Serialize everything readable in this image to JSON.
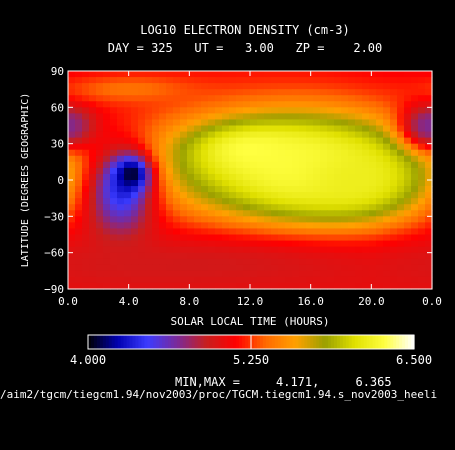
{
  "chart_data": {
    "type": "heatmap",
    "title": "LOG10 ELECTRON DENSITY (cm-3)",
    "subtitle": "DAY = 325   UT =   3.00   ZP =    2.00",
    "xlabel": "SOLAR LOCAL TIME (HOURS)",
    "ylabel": "LATITUDE (DEGREES GEOGRAPHIC)",
    "x_ticks": [
      "0.0",
      "4.0",
      "8.0",
      "12.0",
      "16.0",
      "20.0",
      "0.0"
    ],
    "y_ticks": [
      "90",
      "60",
      "30",
      "0",
      "−30",
      "−60",
      "−90"
    ],
    "y_range": [
      -90,
      90
    ],
    "x_range_hours": [
      0,
      24
    ],
    "colorbar": {
      "ticks": [
        "4.000",
        "5.250",
        "6.500"
      ],
      "min": 4.0,
      "max": 6.5
    },
    "minmax_label": "MIN,MAX =",
    "minmax_values": "4.171,     6.365",
    "blobs": [
      {
        "x": 12.0,
        "y": 50,
        "sx": 9.0,
        "sy": 38,
        "v": 5.2
      },
      {
        "x": 14.5,
        "y": 10,
        "sx": 7.5,
        "sy": 30,
        "v": 5.55
      },
      {
        "x": 13.5,
        "y": 10,
        "sx": 5.2,
        "sy": 26,
        "v": 5.95
      },
      {
        "x": 12.0,
        "y": 25,
        "sx": 2.6,
        "sy": 14,
        "v": 6.25
      },
      {
        "x": 16.0,
        "y": 10,
        "sx": 4.2,
        "sy": 28,
        "v": 6.3
      },
      {
        "x": 19.0,
        "y": 0,
        "sx": 3.0,
        "sy": 22,
        "v": 6.15
      },
      {
        "x": 3.5,
        "y": -10,
        "sx": 1.5,
        "sy": 26,
        "v": 4.4
      },
      {
        "x": 4.2,
        "y": 5,
        "sx": 0.8,
        "sy": 10,
        "v": 4.05
      },
      {
        "x": 8.0,
        "y": -70,
        "sx": 10.0,
        "sy": 15,
        "v": 4.95
      },
      {
        "x": 0.2,
        "y": 45,
        "sx": 1.2,
        "sy": 12,
        "v": 4.9
      },
      {
        "x": 23.8,
        "y": 45,
        "sx": 1.2,
        "sy": 12,
        "v": 4.7
      },
      {
        "x": 4.0,
        "y": 75,
        "sx": 3.0,
        "sy": 8,
        "v": 5.4
      }
    ],
    "background_value": 5.05,
    "colormap": [
      "#000000",
      "#0000b0",
      "#3c3cff",
      "#7a2a9a",
      "#c81e1e",
      "#ff0000",
      "#ff6a00",
      "#ffa000",
      "#9aa000",
      "#e0e000",
      "#ffff40",
      "#ffffff"
    ]
  },
  "footer": {
    "path": "/aim2/tgcm/tiegcm1.94/nov2003/proc/TGCM.tiegcm1.94.s_nov2003_heeli"
  }
}
